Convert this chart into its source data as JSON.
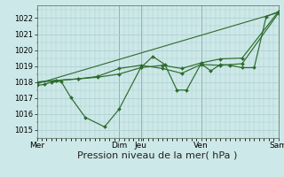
{
  "bg_color": "#cde8e8",
  "grid_color": "#aacccc",
  "line_color": "#2d6b2d",
  "xlabel": "Pression niveau de la mer( hPa )",
  "xlabel_fontsize": 8,
  "ylim": [
    1014.5,
    1022.8
  ],
  "yticks": [
    1015,
    1016,
    1017,
    1018,
    1019,
    1020,
    1021,
    1022
  ],
  "xtick_labels": [
    "Mer",
    "Dim",
    "Jeu",
    "Ven",
    "Sam"
  ],
  "xtick_positions": [
    0.0,
    0.34,
    0.43,
    0.68,
    1.0
  ],
  "vlines_x": [
    0.34,
    0.43,
    0.68,
    1.0
  ],
  "series1_x": [
    0.0,
    0.03,
    0.06,
    0.1,
    0.14,
    0.2,
    0.28,
    0.34,
    0.43,
    0.48,
    0.53,
    0.58,
    0.62,
    0.68,
    0.72,
    0.76,
    0.8,
    0.85,
    0.9,
    0.95,
    1.0
  ],
  "series1_y": [
    1017.8,
    1017.85,
    1018.0,
    1018.05,
    1017.05,
    1015.8,
    1015.2,
    1016.3,
    1018.9,
    1019.6,
    1019.1,
    1017.5,
    1017.5,
    1019.15,
    1018.7,
    1019.1,
    1019.05,
    1018.9,
    1018.9,
    1022.1,
    1022.4
  ],
  "series2_x": [
    0.0,
    0.08,
    0.17,
    0.25,
    0.34,
    0.43,
    0.52,
    0.6,
    0.68,
    0.76,
    0.85,
    1.0
  ],
  "series2_y": [
    1018.0,
    1018.1,
    1018.2,
    1018.3,
    1018.5,
    1018.9,
    1019.05,
    1018.85,
    1019.2,
    1019.45,
    1019.5,
    1022.4
  ],
  "series3_x": [
    0.0,
    1.0
  ],
  "series3_y": [
    1017.9,
    1022.35
  ],
  "series4_x": [
    0.0,
    0.08,
    0.17,
    0.25,
    0.34,
    0.43,
    0.52,
    0.6,
    0.68,
    0.76,
    0.85,
    1.0
  ],
  "series4_y": [
    1018.0,
    1018.1,
    1018.2,
    1018.35,
    1018.85,
    1019.05,
    1018.85,
    1018.55,
    1019.1,
    1019.05,
    1019.15,
    1022.3
  ]
}
